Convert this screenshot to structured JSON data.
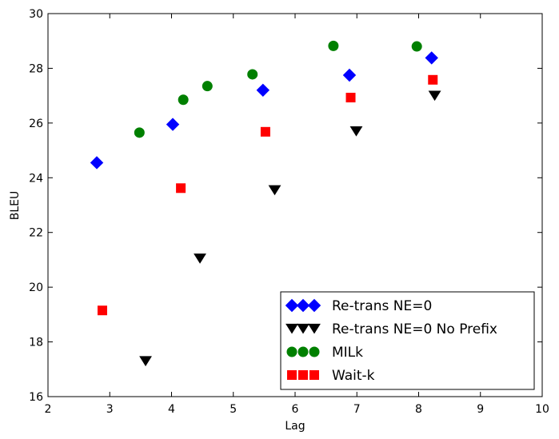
{
  "chart_data": {
    "type": "scatter",
    "xlabel": "Lag",
    "ylabel": "BLEU",
    "xlim": [
      2,
      10
    ],
    "ylim": [
      16,
      30
    ],
    "xticks": [
      "2",
      "3",
      "4",
      "5",
      "6",
      "7",
      "8",
      "9",
      "10"
    ],
    "yticks": [
      "16",
      "18",
      "20",
      "22",
      "24",
      "26",
      "28",
      "30"
    ],
    "grid": false,
    "legend_position": "lower-right",
    "series": [
      {
        "name": "Re-trans NE=0",
        "marker": "diamond",
        "color": "#0000ff",
        "points": [
          [
            2.79,
            24.55
          ],
          [
            4.02,
            25.95
          ],
          [
            5.48,
            27.2
          ],
          [
            6.88,
            27.75
          ],
          [
            8.21,
            28.38
          ]
        ]
      },
      {
        "name": "Re-trans NE=0 No Prefix",
        "marker": "triangle-down",
        "color": "#000000",
        "points": [
          [
            3.58,
            17.3
          ],
          [
            4.46,
            21.05
          ],
          [
            5.67,
            23.55
          ],
          [
            6.99,
            25.7
          ],
          [
            8.26,
            27.0
          ]
        ]
      },
      {
        "name": "MILk",
        "marker": "circle",
        "color": "#008000",
        "points": [
          [
            3.48,
            25.65
          ],
          [
            4.19,
            26.85
          ],
          [
            4.58,
            27.35
          ],
          [
            5.31,
            27.78
          ],
          [
            6.62,
            28.82
          ],
          [
            7.97,
            28.8
          ]
        ]
      },
      {
        "name": "Wait-k",
        "marker": "square",
        "color": "#ff0000",
        "points": [
          [
            2.88,
            19.15
          ],
          [
            4.15,
            23.62
          ],
          [
            5.52,
            25.68
          ],
          [
            6.9,
            26.93
          ],
          [
            8.23,
            27.58
          ]
        ]
      }
    ]
  }
}
